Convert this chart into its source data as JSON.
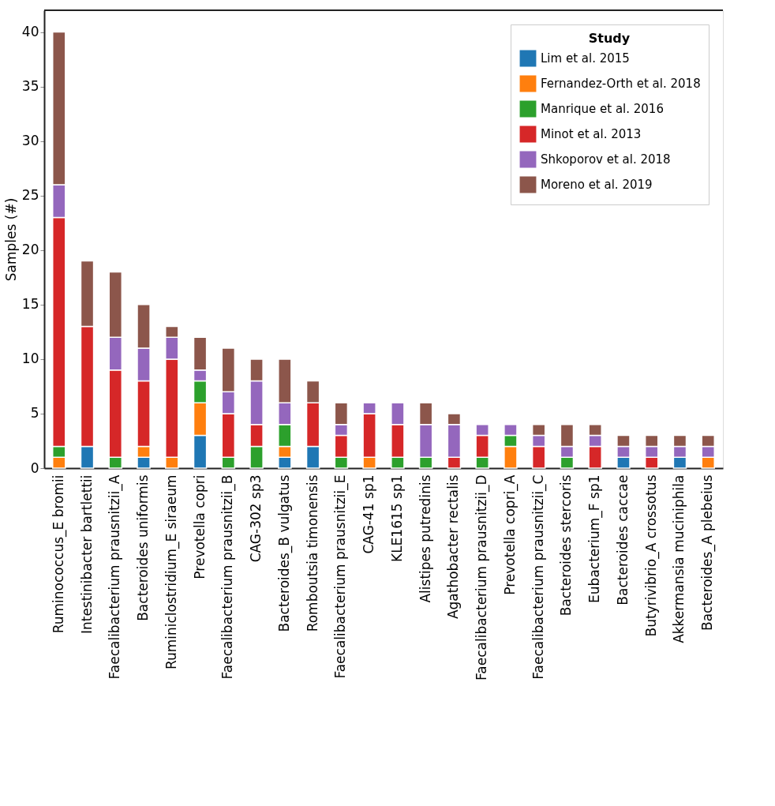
{
  "chart_data": {
    "type": "bar",
    "stacked": true,
    "ylabel": "Samples (#)",
    "legend_title": "Study",
    "legend": "top right",
    "grid": false,
    "categories": [
      "Ruminococcus_E bromii",
      "Intestinibacter bartlettii",
      "Faecalibacterium prausnitzii_A",
      "Bacteroides uniformis",
      "Ruminiclostridium_E siraeum",
      "Prevotella copri",
      "Faecalibacterium prausnitzii_B",
      "CAG-302 sp3",
      "Bacteroides_B vulgatus",
      "Romboutsia timonensis",
      "Faecalibacterium prausnitzii_E",
      "CAG-41 sp1",
      "KLE1615 sp1",
      "Alistipes putredinis",
      "Agathobacter rectalis",
      "Faecalibacterium prausnitzii_D",
      "Prevotella copri_A",
      "Faecalibacterium prausnitzii_C",
      "Bacteroides stercoris",
      "Eubacterium_F sp1",
      "Bacteroides caccae",
      "Butyrivibrio_A crossotus",
      "Akkermansia muciniphila",
      "Bacteroides_A plebeius"
    ],
    "ylim": [
      0,
      42
    ],
    "yticks": [
      0,
      5,
      10,
      15,
      20,
      25,
      30,
      35,
      40
    ],
    "series": [
      {
        "name": "Lim et al. 2015",
        "color": "#1f77b4",
        "values": [
          null,
          2,
          null,
          1,
          null,
          3,
          null,
          null,
          1,
          2,
          null,
          null,
          null,
          null,
          null,
          null,
          null,
          null,
          null,
          null,
          1,
          null,
          1,
          null
        ]
      },
      {
        "name": "Fernandez-Orth et al. 2018",
        "color": "#ff7f0e",
        "values": [
          1,
          null,
          null,
          1,
          1,
          3,
          null,
          null,
          1,
          null,
          null,
          1,
          null,
          null,
          null,
          null,
          2,
          null,
          null,
          null,
          null,
          null,
          null,
          1
        ]
      },
      {
        "name": "Manrique et al. 2016",
        "color": "#2ca02c",
        "values": [
          1,
          null,
          1,
          null,
          null,
          2,
          1,
          2,
          2,
          null,
          1,
          null,
          1,
          1,
          null,
          1,
          1,
          null,
          1,
          null,
          null,
          null,
          null,
          null
        ]
      },
      {
        "name": "Minot et al. 2013",
        "color": "#d62728",
        "values": [
          21,
          11,
          8,
          6,
          9,
          null,
          4,
          2,
          null,
          4,
          2,
          4,
          3,
          null,
          1,
          2,
          null,
          2,
          null,
          2,
          null,
          1,
          null,
          null
        ]
      },
      {
        "name": "Shkoporov et al. 2018",
        "color": "#9467bd",
        "values": [
          3,
          null,
          3,
          3,
          2,
          1,
          2,
          4,
          2,
          null,
          1,
          1,
          2,
          3,
          3,
          1,
          1,
          1,
          1,
          1,
          1,
          1,
          1,
          1
        ]
      },
      {
        "name": "Moreno et al. 2019",
        "color": "#8c564b",
        "values": [
          14,
          6,
          6,
          4,
          1,
          3,
          4,
          2,
          4,
          2,
          2,
          null,
          null,
          2,
          1,
          null,
          null,
          1,
          2,
          1,
          1,
          1,
          1,
          1
        ]
      }
    ]
  }
}
